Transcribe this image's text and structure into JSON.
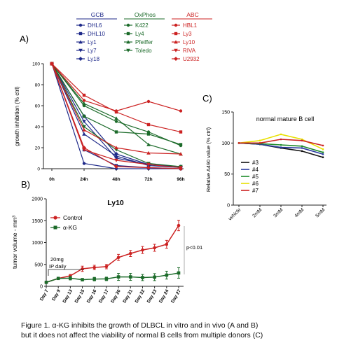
{
  "figure": {
    "caption_line1": "Figure 1. α-KG inhibits the growth of DLBCL in vitro and in vivo (A and B)",
    "caption_line2": "but it does not affect the viability of normal B cells from multiple donors (C)"
  },
  "colors": {
    "gcb": "#1f2a8a",
    "oxphos": "#1c6b2a",
    "abc": "#cc2222"
  },
  "chart_data": [
    {
      "panel": "A)",
      "type": "line",
      "ylabel": "growth inhibition (% ctrl)",
      "ylim": [
        0,
        100
      ],
      "yticks": [
        0,
        20,
        40,
        60,
        80,
        100
      ],
      "x": [
        "0h",
        "24h",
        "48h",
        "72h",
        "96h"
      ],
      "legend_groups": [
        {
          "title": "GCB",
          "color": "#1f2a8a",
          "series": [
            {
              "name": "DHL6",
              "marker": "circle",
              "values": [
                100,
                5,
                0,
                0,
                0
              ]
            },
            {
              "name": "DHL10",
              "marker": "square",
              "values": [
                100,
                18,
                3,
                1,
                0
              ]
            },
            {
              "name": "Ly1",
              "marker": "triangle",
              "values": [
                100,
                33,
                12,
                3,
                1
              ]
            },
            {
              "name": "Ly7",
              "marker": "triangle-down",
              "values": [
                100,
                45,
                10,
                4,
                1
              ]
            },
            {
              "name": "Ly18",
              "marker": "diamond",
              "values": [
                100,
                50,
                14,
                4,
                2
              ]
            }
          ]
        },
        {
          "title": "OxPhos",
          "color": "#1c6b2a",
          "series": [
            {
              "name": "K422",
              "marker": "circle",
              "values": [
                100,
                60,
                45,
                35,
                22
              ]
            },
            {
              "name": "Ly4",
              "marker": "square",
              "values": [
                100,
                50,
                35,
                33,
                23
              ]
            },
            {
              "name": "Pfeiffer",
              "marker": "triangle",
              "values": [
                100,
                62,
                48,
                23,
                14
              ]
            },
            {
              "name": "Toledo",
              "marker": "triangle-down",
              "values": [
                100,
                40,
                18,
                5,
                2
              ]
            }
          ]
        },
        {
          "title": "ABC",
          "color": "#cc2222",
          "series": [
            {
              "name": "HBL1",
              "marker": "circle",
              "values": [
                100,
                65,
                55,
                64,
                55
              ]
            },
            {
              "name": "Ly3",
              "marker": "square",
              "values": [
                100,
                70,
                54,
                42,
                35
              ]
            },
            {
              "name": "Ly10",
              "marker": "triangle",
              "values": [
                100,
                37,
                20,
                15,
                14
              ]
            },
            {
              "name": "RIVA",
              "marker": "triangle-down",
              "values": [
                100,
                18,
                8,
                4,
                1
              ]
            },
            {
              "name": "U2932",
              "marker": "diamond",
              "values": [
                100,
                20,
                2,
                1,
                0
              ]
            }
          ]
        }
      ]
    },
    {
      "panel": "B)",
      "type": "line",
      "title": "Ly10",
      "ylabel": "tumor volume - mm³",
      "ylim": [
        0,
        2000
      ],
      "yticks": [
        0,
        500,
        1000,
        1500,
        2000
      ],
      "x": [
        "Day 7",
        "Day 9",
        "Day 13",
        "Day 15",
        "Day 16",
        "Day 17",
        "Day 20",
        "Day 21",
        "Day 22",
        "Day 23",
        "Day 24",
        "Day 27"
      ],
      "series": [
        {
          "name": "Control",
          "color": "#cc2222",
          "marker": "circle",
          "values": [
            90,
            180,
            240,
            400,
            430,
            450,
            660,
            750,
            830,
            880,
            960,
            1390
          ],
          "errors": [
            10,
            20,
            30,
            60,
            50,
            50,
            70,
            70,
            80,
            80,
            90,
            120
          ]
        },
        {
          "name": "α-KG",
          "color": "#1c6b2a",
          "marker": "square",
          "values": [
            90,
            180,
            185,
            150,
            165,
            170,
            215,
            215,
            200,
            210,
            255,
            305
          ],
          "errors": [
            10,
            20,
            40,
            30,
            40,
            40,
            80,
            80,
            70,
            80,
            90,
            120
          ]
        }
      ],
      "annotations": {
        "treatment_line1": "20mg",
        "treatment_line2": "IP daily",
        "significance": "p<0.01"
      }
    },
    {
      "panel": "C)",
      "type": "line",
      "title": "normal mature B cell",
      "ylabel": "Relative A490 value (% ctrl)",
      "ylim": [
        0,
        150
      ],
      "yticks": [
        0,
        50,
        100,
        150
      ],
      "x": [
        "vehicle",
        "2mM",
        "3mM",
        "4mM",
        "5mM"
      ],
      "series": [
        {
          "name": "#3",
          "color": "#111111",
          "values": [
            100,
            98,
            92,
            87,
            77
          ]
        },
        {
          "name": "#4",
          "color": "#2a3aa0",
          "values": [
            100,
            98,
            93,
            92,
            82
          ]
        },
        {
          "name": "#5",
          "color": "#1c8a2a",
          "values": [
            100,
            99,
            97,
            95,
            85
          ]
        },
        {
          "name": "#6",
          "color": "#e8e000",
          "values": [
            100,
            104,
            114,
            106,
            90
          ]
        },
        {
          "name": "#7",
          "color": "#cc2222",
          "values": [
            100,
            100,
            106,
            104,
            96
          ]
        }
      ]
    }
  ]
}
